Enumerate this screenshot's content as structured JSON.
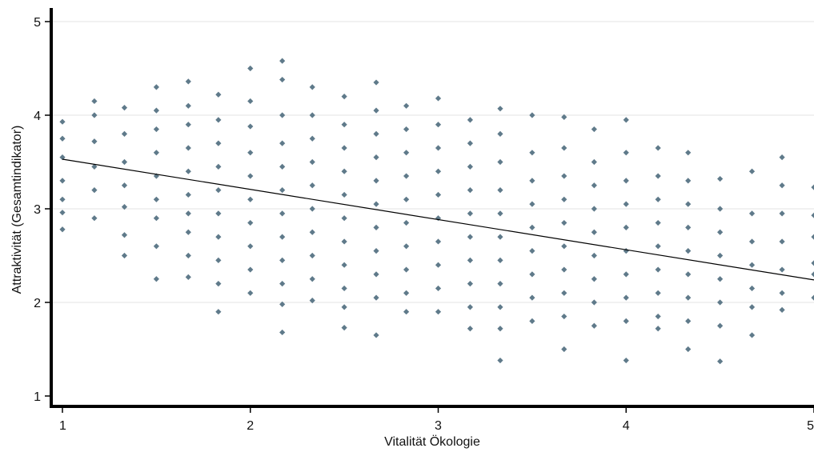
{
  "chart_data": {
    "type": "scatter",
    "xlabel": "Vitalität Ökologie",
    "ylabel": "Attraktivität (Gesamtindikator)",
    "xlim": [
      1,
      5
    ],
    "ylim": [
      1,
      5
    ],
    "x_ticks": [
      1,
      2,
      3,
      4,
      5
    ],
    "y_ticks": [
      1,
      2,
      3,
      4,
      5
    ],
    "x_tick_labels": [
      "1",
      "2",
      "3",
      "4",
      "5"
    ],
    "y_tick_labels": [
      "1",
      "2",
      "3",
      "4",
      "5"
    ],
    "grid": "horizontal",
    "marker_color": "#5f7a8a",
    "fit_line_color": "#000000",
    "fit_line": {
      "x": [
        1,
        5
      ],
      "y": [
        3.53,
        2.24
      ]
    },
    "x_levels": [
      1.0,
      1.17,
      1.33,
      1.5,
      1.67,
      1.83,
      2.0,
      2.17,
      2.33,
      2.5,
      2.67,
      2.83,
      3.0,
      3.17,
      3.33,
      3.5,
      3.67,
      3.83,
      4.0,
      4.17,
      4.33,
      4.5,
      4.67,
      4.83,
      5.0
    ],
    "points": [
      [
        1.0,
        3.93
      ],
      [
        1.0,
        3.75
      ],
      [
        1.0,
        3.55
      ],
      [
        1.0,
        3.3
      ],
      [
        1.0,
        3.1
      ],
      [
        1.0,
        2.96
      ],
      [
        1.0,
        2.78
      ],
      [
        1.17,
        4.15
      ],
      [
        1.17,
        4.0
      ],
      [
        1.17,
        3.72
      ],
      [
        1.17,
        3.45
      ],
      [
        1.17,
        3.2
      ],
      [
        1.17,
        2.9
      ],
      [
        1.33,
        4.08
      ],
      [
        1.33,
        3.8
      ],
      [
        1.33,
        3.5
      ],
      [
        1.33,
        3.25
      ],
      [
        1.33,
        3.02
      ],
      [
        1.33,
        2.72
      ],
      [
        1.33,
        2.5
      ],
      [
        1.5,
        4.3
      ],
      [
        1.5,
        4.05
      ],
      [
        1.5,
        3.85
      ],
      [
        1.5,
        3.6
      ],
      [
        1.5,
        3.35
      ],
      [
        1.5,
        3.1
      ],
      [
        1.5,
        2.9
      ],
      [
        1.5,
        2.6
      ],
      [
        1.5,
        2.25
      ],
      [
        1.67,
        4.36
      ],
      [
        1.67,
        4.1
      ],
      [
        1.67,
        3.9
      ],
      [
        1.67,
        3.65
      ],
      [
        1.67,
        3.4
      ],
      [
        1.67,
        3.15
      ],
      [
        1.67,
        2.95
      ],
      [
        1.67,
        2.75
      ],
      [
        1.67,
        2.5
      ],
      [
        1.67,
        2.27
      ],
      [
        1.83,
        4.22
      ],
      [
        1.83,
        3.95
      ],
      [
        1.83,
        3.7
      ],
      [
        1.83,
        3.45
      ],
      [
        1.83,
        3.2
      ],
      [
        1.83,
        2.95
      ],
      [
        1.83,
        2.7
      ],
      [
        1.83,
        2.45
      ],
      [
        1.83,
        2.2
      ],
      [
        1.83,
        1.9
      ],
      [
        2.0,
        4.5
      ],
      [
        2.0,
        4.15
      ],
      [
        2.0,
        3.88
      ],
      [
        2.0,
        3.6
      ],
      [
        2.0,
        3.35
      ],
      [
        2.0,
        3.1
      ],
      [
        2.0,
        2.85
      ],
      [
        2.0,
        2.6
      ],
      [
        2.0,
        2.35
      ],
      [
        2.0,
        2.1
      ],
      [
        2.17,
        4.58
      ],
      [
        2.17,
        4.38
      ],
      [
        2.17,
        4.0
      ],
      [
        2.17,
        3.7
      ],
      [
        2.17,
        3.45
      ],
      [
        2.17,
        3.2
      ],
      [
        2.17,
        2.95
      ],
      [
        2.17,
        2.7
      ],
      [
        2.17,
        2.45
      ],
      [
        2.17,
        2.2
      ],
      [
        2.17,
        1.98
      ],
      [
        2.17,
        1.68
      ],
      [
        2.33,
        4.3
      ],
      [
        2.33,
        4.0
      ],
      [
        2.33,
        3.75
      ],
      [
        2.33,
        3.5
      ],
      [
        2.33,
        3.25
      ],
      [
        2.33,
        3.0
      ],
      [
        2.33,
        2.75
      ],
      [
        2.33,
        2.5
      ],
      [
        2.33,
        2.25
      ],
      [
        2.33,
        2.02
      ],
      [
        2.5,
        4.2
      ],
      [
        2.5,
        3.9
      ],
      [
        2.5,
        3.65
      ],
      [
        2.5,
        3.4
      ],
      [
        2.5,
        3.15
      ],
      [
        2.5,
        2.9
      ],
      [
        2.5,
        2.65
      ],
      [
        2.5,
        2.4
      ],
      [
        2.5,
        2.15
      ],
      [
        2.5,
        1.95
      ],
      [
        2.5,
        1.73
      ],
      [
        2.67,
        4.35
      ],
      [
        2.67,
        4.05
      ],
      [
        2.67,
        3.8
      ],
      [
        2.67,
        3.55
      ],
      [
        2.67,
        3.3
      ],
      [
        2.67,
        3.05
      ],
      [
        2.67,
        2.8
      ],
      [
        2.67,
        2.55
      ],
      [
        2.67,
        2.3
      ],
      [
        2.67,
        2.05
      ],
      [
        2.67,
        1.65
      ],
      [
        2.83,
        4.1
      ],
      [
        2.83,
        3.85
      ],
      [
        2.83,
        3.6
      ],
      [
        2.83,
        3.35
      ],
      [
        2.83,
        3.1
      ],
      [
        2.83,
        2.85
      ],
      [
        2.83,
        2.6
      ],
      [
        2.83,
        2.35
      ],
      [
        2.83,
        2.1
      ],
      [
        2.83,
        1.9
      ],
      [
        3.0,
        4.18
      ],
      [
        3.0,
        3.9
      ],
      [
        3.0,
        3.65
      ],
      [
        3.0,
        3.4
      ],
      [
        3.0,
        3.15
      ],
      [
        3.0,
        2.9
      ],
      [
        3.0,
        2.65
      ],
      [
        3.0,
        2.4
      ],
      [
        3.0,
        2.15
      ],
      [
        3.0,
        1.9
      ],
      [
        3.17,
        3.95
      ],
      [
        3.17,
        3.7
      ],
      [
        3.17,
        3.45
      ],
      [
        3.17,
        3.2
      ],
      [
        3.17,
        2.95
      ],
      [
        3.17,
        2.7
      ],
      [
        3.17,
        2.45
      ],
      [
        3.17,
        2.2
      ],
      [
        3.17,
        1.95
      ],
      [
        3.17,
        1.72
      ],
      [
        3.33,
        4.07
      ],
      [
        3.33,
        3.8
      ],
      [
        3.33,
        3.5
      ],
      [
        3.33,
        3.2
      ],
      [
        3.33,
        2.95
      ],
      [
        3.33,
        2.7
      ],
      [
        3.33,
        2.45
      ],
      [
        3.33,
        2.2
      ],
      [
        3.33,
        1.95
      ],
      [
        3.33,
        1.72
      ],
      [
        3.33,
        1.38
      ],
      [
        3.5,
        4.0
      ],
      [
        3.5,
        3.6
      ],
      [
        3.5,
        3.3
      ],
      [
        3.5,
        3.05
      ],
      [
        3.5,
        2.8
      ],
      [
        3.5,
        2.55
      ],
      [
        3.5,
        2.3
      ],
      [
        3.5,
        2.05
      ],
      [
        3.5,
        1.8
      ],
      [
        3.67,
        3.98
      ],
      [
        3.67,
        3.65
      ],
      [
        3.67,
        3.35
      ],
      [
        3.67,
        3.1
      ],
      [
        3.67,
        2.85
      ],
      [
        3.67,
        2.6
      ],
      [
        3.67,
        2.35
      ],
      [
        3.67,
        2.1
      ],
      [
        3.67,
        1.85
      ],
      [
        3.67,
        1.5
      ],
      [
        3.83,
        3.85
      ],
      [
        3.83,
        3.5
      ],
      [
        3.83,
        3.25
      ],
      [
        3.83,
        3.0
      ],
      [
        3.83,
        2.75
      ],
      [
        3.83,
        2.5
      ],
      [
        3.83,
        2.25
      ],
      [
        3.83,
        2.0
      ],
      [
        3.83,
        1.75
      ],
      [
        4.0,
        3.95
      ],
      [
        4.0,
        3.6
      ],
      [
        4.0,
        3.3
      ],
      [
        4.0,
        3.05
      ],
      [
        4.0,
        2.8
      ],
      [
        4.0,
        2.55
      ],
      [
        4.0,
        2.3
      ],
      [
        4.0,
        2.05
      ],
      [
        4.0,
        1.8
      ],
      [
        4.0,
        1.38
      ],
      [
        4.17,
        3.65
      ],
      [
        4.17,
        3.35
      ],
      [
        4.17,
        3.1
      ],
      [
        4.17,
        2.85
      ],
      [
        4.17,
        2.6
      ],
      [
        4.17,
        2.35
      ],
      [
        4.17,
        2.1
      ],
      [
        4.17,
        1.85
      ],
      [
        4.17,
        1.72
      ],
      [
        4.33,
        3.6
      ],
      [
        4.33,
        3.3
      ],
      [
        4.33,
        3.05
      ],
      [
        4.33,
        2.8
      ],
      [
        4.33,
        2.55
      ],
      [
        4.33,
        2.3
      ],
      [
        4.33,
        2.05
      ],
      [
        4.33,
        1.8
      ],
      [
        4.33,
        1.5
      ],
      [
        4.5,
        3.32
      ],
      [
        4.5,
        3.0
      ],
      [
        4.5,
        2.75
      ],
      [
        4.5,
        2.5
      ],
      [
        4.5,
        2.25
      ],
      [
        4.5,
        2.0
      ],
      [
        4.5,
        1.75
      ],
      [
        4.5,
        1.37
      ],
      [
        4.67,
        3.4
      ],
      [
        4.67,
        2.95
      ],
      [
        4.67,
        2.65
      ],
      [
        4.67,
        2.4
      ],
      [
        4.67,
        2.15
      ],
      [
        4.67,
        1.95
      ],
      [
        4.67,
        1.65
      ],
      [
        4.83,
        3.55
      ],
      [
        4.83,
        3.25
      ],
      [
        4.83,
        2.95
      ],
      [
        4.83,
        2.65
      ],
      [
        4.83,
        2.35
      ],
      [
        4.83,
        2.1
      ],
      [
        4.83,
        1.92
      ],
      [
        5.0,
        3.23
      ],
      [
        5.0,
        2.93
      ],
      [
        5.0,
        2.7
      ],
      [
        5.0,
        2.42
      ],
      [
        5.0,
        2.3
      ],
      [
        5.0,
        2.05
      ]
    ]
  }
}
